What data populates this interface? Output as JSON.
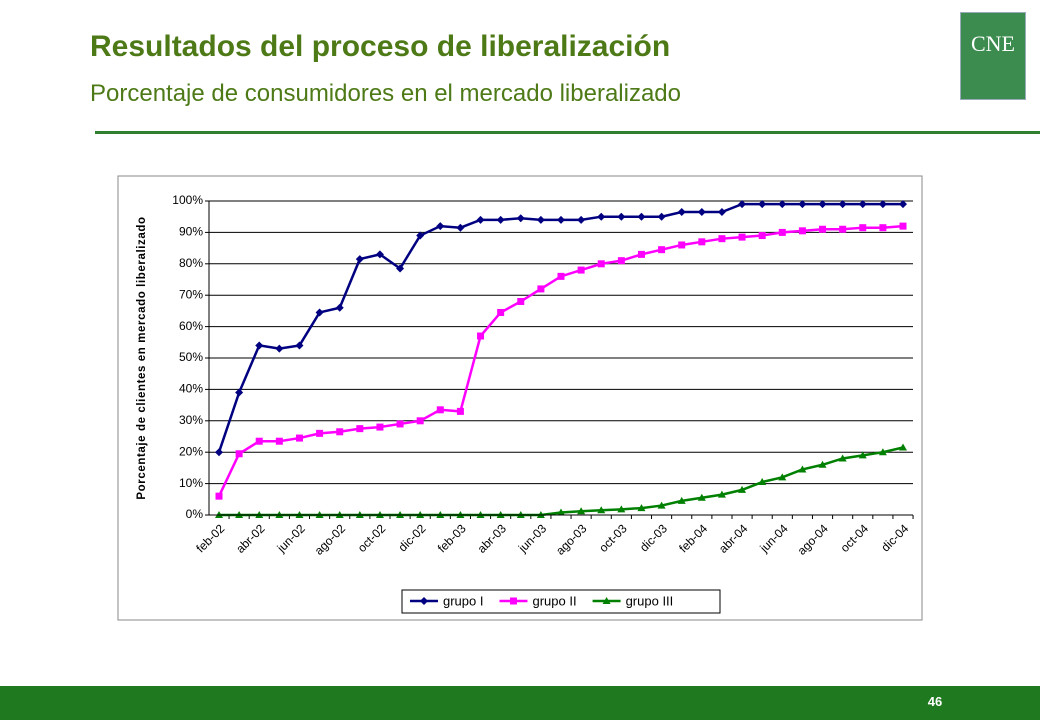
{
  "header": {
    "title": "Resultados del proceso de liberalización",
    "subtitle": "Porcentaje de consumidores en el mercado liberalizado"
  },
  "logo": "CNE",
  "page_number": "46",
  "chart_data": {
    "type": "line",
    "y_label": "Porcentaje de clientes en mercado liberalizado",
    "categories": [
      "feb-02",
      null,
      "abr-02",
      null,
      "jun-02",
      null,
      "ago-02",
      null,
      "oct-02",
      null,
      "dic-02",
      null,
      "feb-03",
      null,
      "abr-03",
      null,
      "jun-03",
      null,
      "ago-03",
      null,
      "oct-03",
      null,
      "dic-03",
      null,
      "feb-04",
      null,
      "abr-04",
      null,
      "jun-04",
      null,
      "ago-04",
      null,
      "oct-04",
      null,
      "dic-04"
    ],
    "series": [
      {
        "name": "grupo I",
        "color": "#000080",
        "marker": "diamond",
        "values": [
          20,
          39,
          54,
          53,
          54,
          64.5,
          66,
          81.5,
          83,
          78.5,
          89,
          92,
          91.5,
          94,
          94,
          94.5,
          94,
          94,
          94,
          95,
          95,
          95,
          95,
          96.5,
          96.5,
          96.5,
          99,
          99,
          99,
          99,
          99,
          99,
          99,
          99,
          99
        ]
      },
      {
        "name": "grupo II",
        "color": "#ff00ff",
        "marker": "square",
        "values": [
          6,
          19.5,
          23.5,
          23.5,
          24.5,
          26,
          26.5,
          27.5,
          28,
          29,
          30,
          33.5,
          33,
          57,
          64.5,
          68,
          72,
          76,
          78,
          80,
          81,
          83,
          84.5,
          86,
          87,
          88,
          88.5,
          89,
          90,
          90.5,
          91,
          91,
          91.5,
          91.5,
          92
        ]
      },
      {
        "name": "grupo III",
        "color": "#008000",
        "marker": "triangle",
        "values": [
          0,
          0,
          0,
          0,
          0,
          0,
          0,
          0,
          0,
          0,
          0,
          0,
          0,
          0,
          0,
          0,
          0,
          0.8,
          1.2,
          1.5,
          1.8,
          2.2,
          3,
          4.5,
          5.5,
          6.5,
          8,
          10.5,
          12,
          14.5,
          16,
          18,
          19,
          20,
          21.5
        ]
      }
    ],
    "ylim": [
      0,
      100
    ],
    "yticks": [
      {
        "value": 0,
        "label": "0%"
      },
      {
        "value": 10,
        "label": "10%"
      },
      {
        "value": 20,
        "label": "20%"
      },
      {
        "value": 30,
        "label": "30%"
      },
      {
        "value": 40,
        "label": "40%"
      },
      {
        "value": 50,
        "label": "50%"
      },
      {
        "value": 60,
        "label": "60%"
      },
      {
        "value": 70,
        "label": "70%"
      },
      {
        "value": 80,
        "label": "80%"
      },
      {
        "value": 90,
        "label": "90%"
      },
      {
        "value": 100,
        "label": "100%"
      }
    ],
    "grid": true,
    "legend": "bottom"
  }
}
